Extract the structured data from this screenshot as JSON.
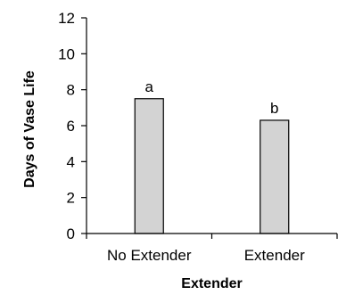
{
  "chart_data": {
    "type": "bar",
    "categories": [
      "No Extender",
      "Extender"
    ],
    "values": [
      7.5,
      6.3
    ],
    "data_labels": [
      "a",
      "b"
    ],
    "xlabel": "Extender",
    "ylabel": "Days of Vase Life",
    "ylim": [
      0,
      12
    ],
    "yticks": [
      0,
      2,
      4,
      6,
      8,
      10,
      12
    ],
    "grid": false,
    "legend": "none",
    "bar_color": "#d3d3d3",
    "bar_edge_color": "#000000"
  }
}
